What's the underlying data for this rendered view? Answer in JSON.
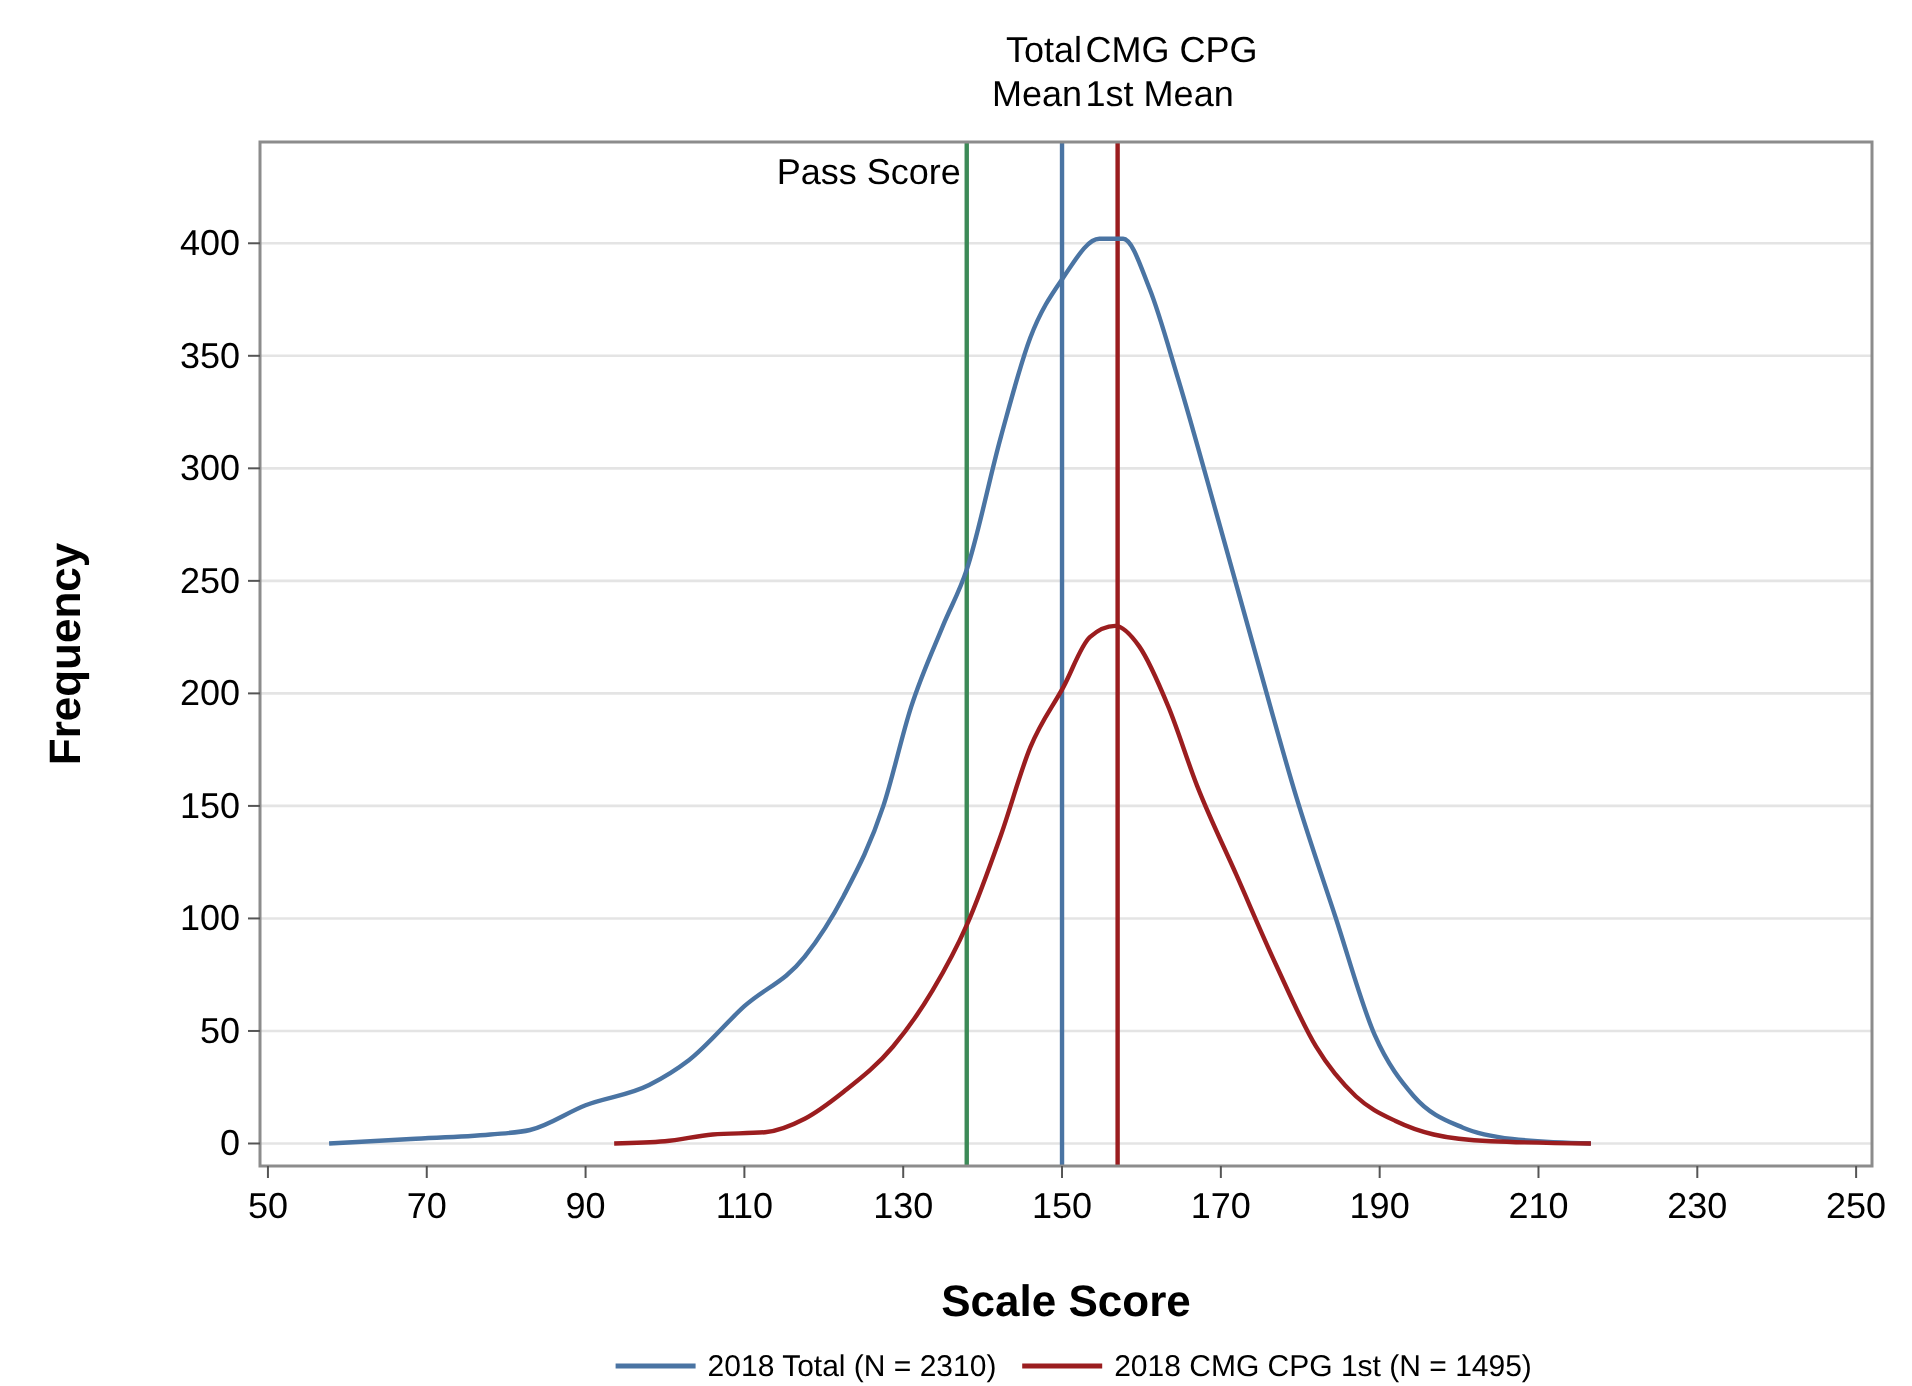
{
  "chart_data": {
    "type": "line",
    "xlabel": "Scale Score",
    "ylabel": "Frequency",
    "xlim": [
      49,
      252
    ],
    "xticks": [
      50,
      70,
      90,
      110,
      130,
      150,
      170,
      190,
      210,
      230,
      250
    ],
    "ylim": [
      -10,
      445
    ],
    "yticks": [
      0,
      50,
      100,
      150,
      200,
      250,
      300,
      350,
      400
    ],
    "grid": "y",
    "legend": "bottom",
    "marker": "none",
    "line_style": "solid",
    "series": [
      {
        "name": "2018 Total (N = 2310)",
        "color": "#4a74a3",
        "x": [
          57.7,
          68,
          78,
          83,
          90,
          98,
          103,
          110,
          117.6,
          122.5,
          127.5,
          131,
          135,
          138,
          142.3,
          146,
          150.2,
          154.7,
          157.7,
          161,
          164.6,
          169.6,
          174.5,
          179.5,
          184.4,
          189.4,
          194.3,
          200.5,
          206.7,
          216.6
        ],
        "values": [
          0,
          2,
          4,
          6,
          17,
          26,
          37,
          61,
          83,
          110,
          150,
          194,
          230,
          255,
          314,
          358,
          385,
          402,
          402,
          380,
          340,
          278,
          216,
          154,
          101,
          48,
          21,
          7,
          2,
          0
        ]
      },
      {
        "name": "2018 CMG CPG 1st (N = 1495)",
        "color": "#9b1d1f",
        "x": [
          93.6,
          100,
          106,
          112.6,
          117.6,
          122.5,
          128.7,
          133.7,
          138,
          142.3,
          146,
          150.2,
          153.5,
          156.7,
          159.7,
          163.4,
          167,
          172,
          177,
          182,
          187,
          192,
          196.8,
          204,
          216.6
        ],
        "values": [
          0,
          1,
          4,
          5,
          11,
          23,
          43,
          68,
          97,
          137,
          176,
          203,
          225,
          230,
          221,
          194,
          159,
          119,
          79,
          43,
          21,
          10,
          4,
          1,
          0
        ]
      }
    ],
    "ref_lines": [
      {
        "axis": "x",
        "value": 138,
        "label": "Pass Score",
        "color": "#3c8a57"
      },
      {
        "axis": "x",
        "value": 150,
        "label": "Total\nMean",
        "color": "#4a74a3"
      },
      {
        "axis": "x",
        "value": 157,
        "label": "CMG CPG\n1st Mean",
        "color": "#9b1d1f"
      }
    ]
  }
}
